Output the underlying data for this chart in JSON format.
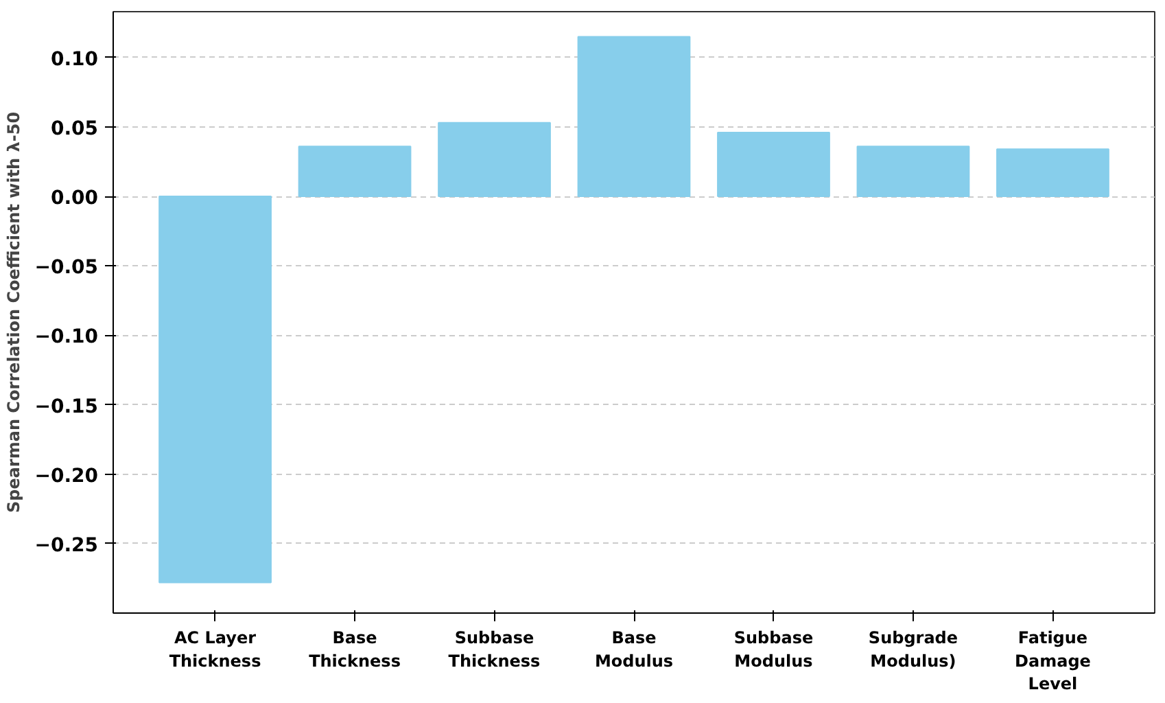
{
  "chart_data": {
    "type": "bar",
    "ylabel": "Spearman Correlation Coefficient with λ-50",
    "categories": [
      "AC Layer\nThickness",
      "Base\nThickness",
      "Subbase\nThickness",
      "Base\nModulus",
      "Subbase\nModulus",
      "Subgrade\nModulus)",
      "Fatigue\nDamage\nLevel"
    ],
    "values": [
      -0.278,
      0.036,
      0.053,
      0.115,
      0.046,
      0.036,
      0.034
    ],
    "color": "#87ceeb",
    "ylim": [
      -0.3,
      0.133
    ],
    "yticks": [
      {
        "value": -0.25,
        "label": "−0.25"
      },
      {
        "value": -0.2,
        "label": "−0.20"
      },
      {
        "value": -0.15,
        "label": "−0.15"
      },
      {
        "value": -0.1,
        "label": "−0.10"
      },
      {
        "value": -0.05,
        "label": "−0.05"
      },
      {
        "value": 0,
        "label": "0.00"
      },
      {
        "value": 0.05,
        "label": "0.05"
      },
      {
        "value": 0.1,
        "label": "0.10"
      }
    ],
    "grid": "y"
  }
}
